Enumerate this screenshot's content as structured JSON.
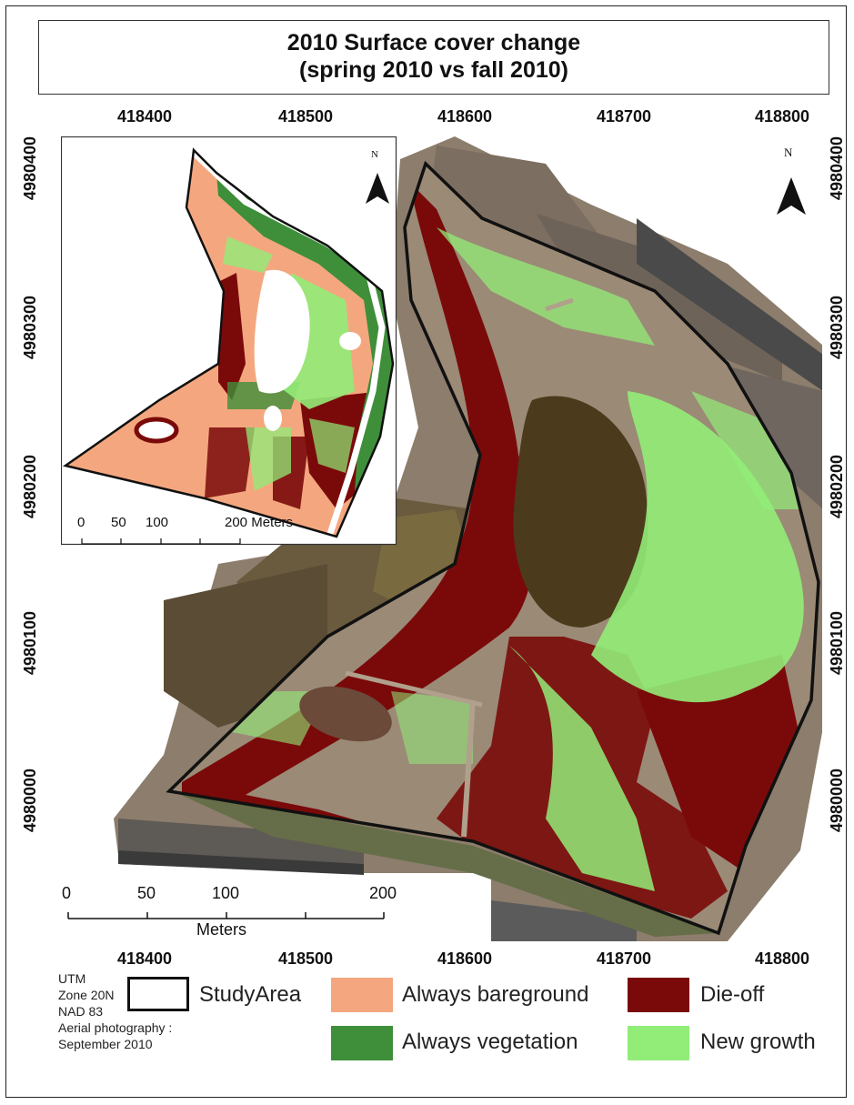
{
  "title": {
    "line1": "2010 Surface cover change",
    "line2": "(spring 2010 vs fall 2010)"
  },
  "coordinates": {
    "x_ticks": [
      "418400",
      "418500",
      "418600",
      "418700",
      "418800"
    ],
    "y_ticks": [
      "4980400",
      "4980300",
      "4980200",
      "4980100",
      "4980000"
    ]
  },
  "north_arrow": {
    "label": "N"
  },
  "inset": {
    "north_label": "N",
    "scale_ticks": [
      "0",
      "50",
      "100",
      "200 Meters"
    ]
  },
  "main_scale": {
    "ticks": [
      "0",
      "50",
      "100",
      "200"
    ],
    "unit": "Meters"
  },
  "legend": {
    "notes": [
      "UTM",
      "Zone 20N",
      "NAD 83",
      "Aerial photography :",
      "September 2010"
    ],
    "items": [
      {
        "label": "StudyArea",
        "color": "#ffffff"
      },
      {
        "label": "Always bareground",
        "color": "#f4a77f"
      },
      {
        "label": "Always vegetation",
        "color": "#3f8f3a"
      },
      {
        "label": "Die-off",
        "color": "#7a0a0a"
      },
      {
        "label": "New growth",
        "color": "#92ec78"
      }
    ]
  }
}
